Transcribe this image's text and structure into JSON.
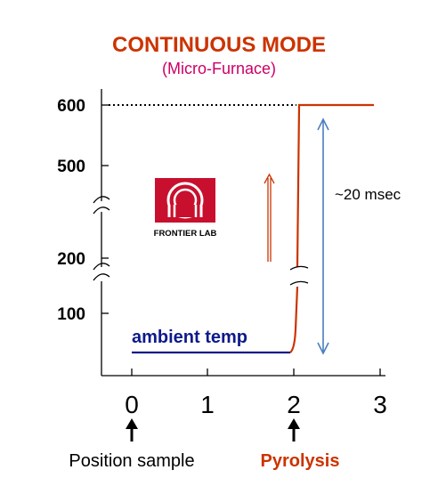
{
  "chart_data": {
    "type": "line",
    "title": "CONTINUOUS MODE",
    "subtitle": "(Micro-Furnace)",
    "xlabel": "",
    "ylabel": "",
    "x_ticks": [
      "0",
      "1",
      "2",
      "3"
    ],
    "y_ticks": [
      "100",
      "200",
      "500",
      "600"
    ],
    "xlim": [
      -0.3,
      3.1
    ],
    "series": [
      {
        "color": "#cc3300",
        "points": [
          [
            1.98,
            30
          ],
          [
            2.02,
            80
          ],
          [
            2.05,
            300
          ],
          [
            2.05,
            600
          ],
          [
            2.9,
            600
          ]
        ]
      }
    ],
    "reference_line": {
      "y": 600,
      "style": "dotted",
      "color": "#000000"
    },
    "ambient_line": {
      "x": [
        0,
        1.85
      ],
      "y": 30,
      "color": "#0d1a8a"
    },
    "annotations": {
      "ambient": "ambient temp",
      "duration": "~20 msec",
      "position_sample": "Position sample",
      "pyrolysis": "Pyrolysis"
    },
    "logo": {
      "text": "FRONTIER LAB",
      "color": "#c8102e"
    },
    "colors": {
      "title": "#cc3300",
      "subtitle": "#cc0066",
      "arrow_blue": "#4a7fc0",
      "pyrolysis": "#cc3300"
    }
  }
}
